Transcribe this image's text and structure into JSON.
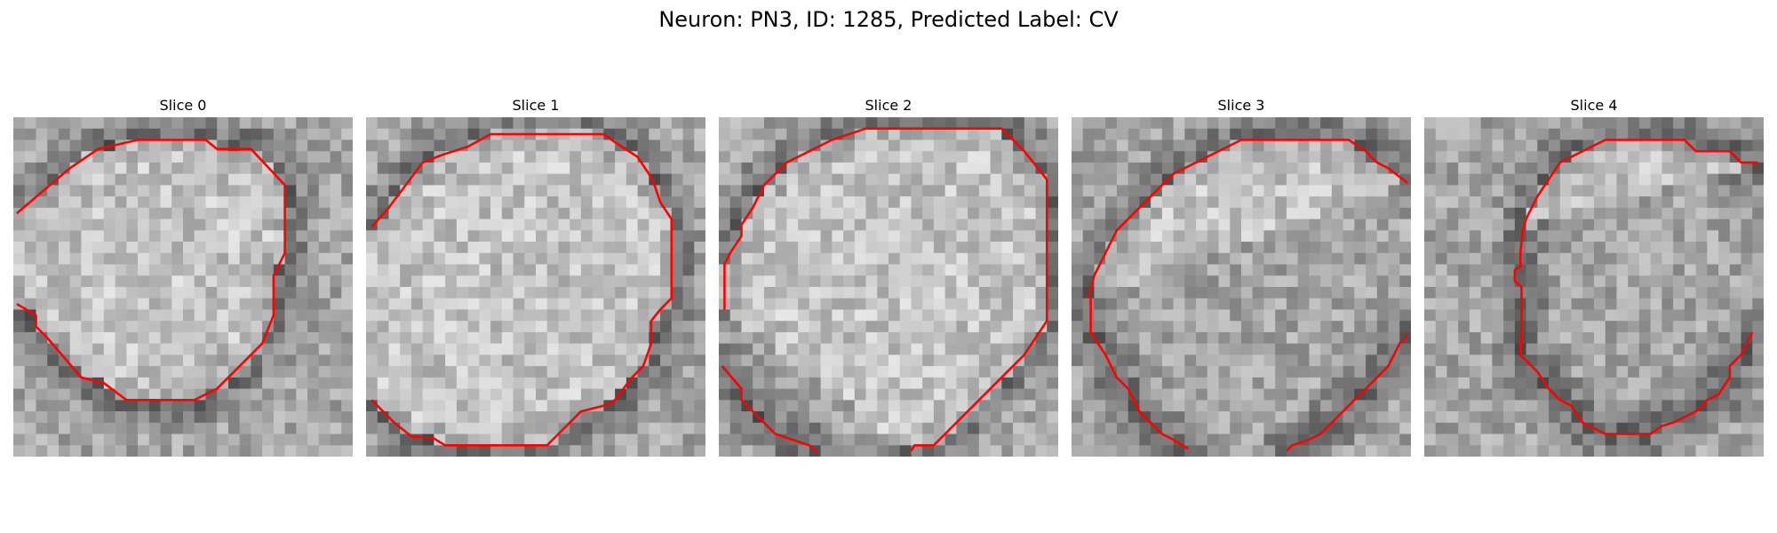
{
  "figure": {
    "title": "Neuron: PN3, ID: 1285, Predicted Label: CV"
  },
  "panels": [
    {
      "title": "Slice 0"
    },
    {
      "title": "Slice 1"
    },
    {
      "title": "Slice 2"
    },
    {
      "title": "Slice 3"
    },
    {
      "title": "Slice 4"
    }
  ],
  "colors": {
    "contour": "#ff0000",
    "background": "#ffffff"
  }
}
